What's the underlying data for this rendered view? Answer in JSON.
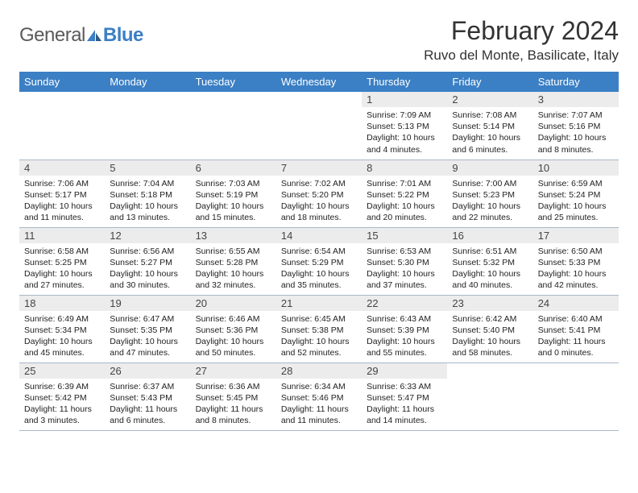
{
  "brand": {
    "word1": "General",
    "word2": "Blue",
    "word1_color": "#5a5a5a",
    "word2_color": "#3b7fc4",
    "shape_color": "#3b7fc4"
  },
  "title": "February 2024",
  "location": "Ruvo del Monte, Basilicate, Italy",
  "colors": {
    "header_bg": "#3b7fc4",
    "header_text": "#ffffff",
    "daynum_bg": "#ececec",
    "cell_border": "#a8b8c8",
    "text": "#222222"
  },
  "daysOfWeek": [
    "Sunday",
    "Monday",
    "Tuesday",
    "Wednesday",
    "Thursday",
    "Friday",
    "Saturday"
  ],
  "leadingBlanks": 4,
  "days": [
    {
      "n": "1",
      "sunrise": "7:09 AM",
      "sunset": "5:13 PM",
      "daylight": "10 hours and 4 minutes."
    },
    {
      "n": "2",
      "sunrise": "7:08 AM",
      "sunset": "5:14 PM",
      "daylight": "10 hours and 6 minutes."
    },
    {
      "n": "3",
      "sunrise": "7:07 AM",
      "sunset": "5:16 PM",
      "daylight": "10 hours and 8 minutes."
    },
    {
      "n": "4",
      "sunrise": "7:06 AM",
      "sunset": "5:17 PM",
      "daylight": "10 hours and 11 minutes."
    },
    {
      "n": "5",
      "sunrise": "7:04 AM",
      "sunset": "5:18 PM",
      "daylight": "10 hours and 13 minutes."
    },
    {
      "n": "6",
      "sunrise": "7:03 AM",
      "sunset": "5:19 PM",
      "daylight": "10 hours and 15 minutes."
    },
    {
      "n": "7",
      "sunrise": "7:02 AM",
      "sunset": "5:20 PM",
      "daylight": "10 hours and 18 minutes."
    },
    {
      "n": "8",
      "sunrise": "7:01 AM",
      "sunset": "5:22 PM",
      "daylight": "10 hours and 20 minutes."
    },
    {
      "n": "9",
      "sunrise": "7:00 AM",
      "sunset": "5:23 PM",
      "daylight": "10 hours and 22 minutes."
    },
    {
      "n": "10",
      "sunrise": "6:59 AM",
      "sunset": "5:24 PM",
      "daylight": "10 hours and 25 minutes."
    },
    {
      "n": "11",
      "sunrise": "6:58 AM",
      "sunset": "5:25 PM",
      "daylight": "10 hours and 27 minutes."
    },
    {
      "n": "12",
      "sunrise": "6:56 AM",
      "sunset": "5:27 PM",
      "daylight": "10 hours and 30 minutes."
    },
    {
      "n": "13",
      "sunrise": "6:55 AM",
      "sunset": "5:28 PM",
      "daylight": "10 hours and 32 minutes."
    },
    {
      "n": "14",
      "sunrise": "6:54 AM",
      "sunset": "5:29 PM",
      "daylight": "10 hours and 35 minutes."
    },
    {
      "n": "15",
      "sunrise": "6:53 AM",
      "sunset": "5:30 PM",
      "daylight": "10 hours and 37 minutes."
    },
    {
      "n": "16",
      "sunrise": "6:51 AM",
      "sunset": "5:32 PM",
      "daylight": "10 hours and 40 minutes."
    },
    {
      "n": "17",
      "sunrise": "6:50 AM",
      "sunset": "5:33 PM",
      "daylight": "10 hours and 42 minutes."
    },
    {
      "n": "18",
      "sunrise": "6:49 AM",
      "sunset": "5:34 PM",
      "daylight": "10 hours and 45 minutes."
    },
    {
      "n": "19",
      "sunrise": "6:47 AM",
      "sunset": "5:35 PM",
      "daylight": "10 hours and 47 minutes."
    },
    {
      "n": "20",
      "sunrise": "6:46 AM",
      "sunset": "5:36 PM",
      "daylight": "10 hours and 50 minutes."
    },
    {
      "n": "21",
      "sunrise": "6:45 AM",
      "sunset": "5:38 PM",
      "daylight": "10 hours and 52 minutes."
    },
    {
      "n": "22",
      "sunrise": "6:43 AM",
      "sunset": "5:39 PM",
      "daylight": "10 hours and 55 minutes."
    },
    {
      "n": "23",
      "sunrise": "6:42 AM",
      "sunset": "5:40 PM",
      "daylight": "10 hours and 58 minutes."
    },
    {
      "n": "24",
      "sunrise": "6:40 AM",
      "sunset": "5:41 PM",
      "daylight": "11 hours and 0 minutes."
    },
    {
      "n": "25",
      "sunrise": "6:39 AM",
      "sunset": "5:42 PM",
      "daylight": "11 hours and 3 minutes."
    },
    {
      "n": "26",
      "sunrise": "6:37 AM",
      "sunset": "5:43 PM",
      "daylight": "11 hours and 6 minutes."
    },
    {
      "n": "27",
      "sunrise": "6:36 AM",
      "sunset": "5:45 PM",
      "daylight": "11 hours and 8 minutes."
    },
    {
      "n": "28",
      "sunrise": "6:34 AM",
      "sunset": "5:46 PM",
      "daylight": "11 hours and 11 minutes."
    },
    {
      "n": "29",
      "sunrise": "6:33 AM",
      "sunset": "5:47 PM",
      "daylight": "11 hours and 14 minutes."
    }
  ],
  "labels": {
    "sunrise": "Sunrise: ",
    "sunset": "Sunset: ",
    "daylight": "Daylight: "
  }
}
